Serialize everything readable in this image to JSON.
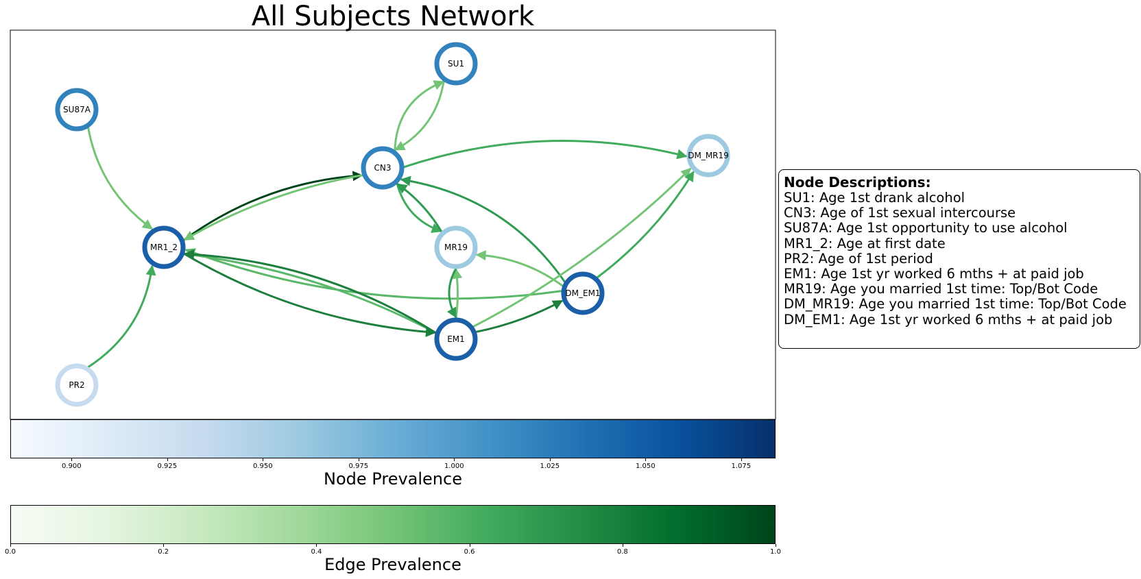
{
  "title": "All Subjects Network",
  "colors": {
    "edge_arrow": "#41ab5d"
  },
  "nodes": [
    {
      "id": "SU1",
      "label": "SU1",
      "prevalence": 1.01,
      "color": "#3182bd"
    },
    {
      "id": "SU87A",
      "label": "SU87A",
      "prevalence": 1.01,
      "color": "#3182bd"
    },
    {
      "id": "CN3",
      "label": "CN3",
      "prevalence": 1.01,
      "color": "#3182bd"
    },
    {
      "id": "DM_MR19",
      "label": "DM_MR19",
      "prevalence": 0.955,
      "color": "#9ecae1"
    },
    {
      "id": "MR1_2",
      "label": "MR1_2",
      "prevalence": 1.04,
      "color": "#1a5fa8"
    },
    {
      "id": "MR19",
      "label": "MR19",
      "prevalence": 0.955,
      "color": "#9ecae1"
    },
    {
      "id": "DM_EM1",
      "label": "DM_EM1",
      "prevalence": 1.04,
      "color": "#1a5fa8"
    },
    {
      "id": "EM1",
      "label": "EM1",
      "prevalence": 1.04,
      "color": "#1a5fa8"
    },
    {
      "id": "PR2",
      "label": "PR2",
      "prevalence": 0.92,
      "color": "#c6dbef"
    }
  ],
  "edges": [
    {
      "from": "CN3",
      "to": "SU1",
      "prevalence": 0.55,
      "color": "#74c476"
    },
    {
      "from": "SU1",
      "to": "CN3",
      "prevalence": 0.55,
      "color": "#74c476"
    },
    {
      "from": "SU87A",
      "to": "MR1_2",
      "prevalence": 0.55,
      "color": "#74c476"
    },
    {
      "from": "MR1_2",
      "to": "CN3",
      "prevalence": 0.95,
      "color": "#00441b"
    },
    {
      "from": "CN3",
      "to": "MR1_2",
      "prevalence": 0.55,
      "color": "#74c476"
    },
    {
      "from": "CN3",
      "to": "DM_MR19",
      "prevalence": 0.65,
      "color": "#41ab5d"
    },
    {
      "from": "CN3",
      "to": "MR19",
      "prevalence": 0.65,
      "color": "#41ab5d"
    },
    {
      "from": "MR19",
      "to": "CN3",
      "prevalence": 0.7,
      "color": "#2f9a52"
    },
    {
      "from": "DM_EM1",
      "to": "CN3",
      "prevalence": 0.7,
      "color": "#2f9a52"
    },
    {
      "from": "DM_EM1",
      "to": "MR1_2",
      "prevalence": 0.6,
      "color": "#5bb86a"
    },
    {
      "from": "EM1",
      "to": "MR1_2",
      "prevalence": 0.6,
      "color": "#5bb86a"
    },
    {
      "from": "MR1_2",
      "to": "EM1",
      "prevalence": 0.8,
      "color": "#1d7f3d"
    },
    {
      "from": "EM1",
      "to": "MR1_2",
      "prevalence": 0.8,
      "color": "#1d7f3d"
    },
    {
      "from": "PR2",
      "to": "MR1_2",
      "prevalence": 0.65,
      "color": "#41ab5d"
    },
    {
      "from": "EM1",
      "to": "MR19",
      "prevalence": 0.55,
      "color": "#74c476"
    },
    {
      "from": "MR19",
      "to": "EM1",
      "prevalence": 0.7,
      "color": "#2f9a52"
    },
    {
      "from": "DM_EM1",
      "to": "MR19",
      "prevalence": 0.55,
      "color": "#74c476"
    },
    {
      "from": "EM1",
      "to": "DM_EM1",
      "prevalence": 0.8,
      "color": "#1d7f3d"
    },
    {
      "from": "EM1",
      "to": "DM_MR19",
      "prevalence": 0.55,
      "color": "#74c476"
    },
    {
      "from": "DM_EM1",
      "to": "DM_MR19",
      "prevalence": 0.65,
      "color": "#41ab5d"
    }
  ],
  "legend": {
    "title": "Node Descriptions:",
    "lines": [
      "SU1: Age 1st drank alcohol",
      "CN3: Age of 1st sexual intercourse",
      "SU87A: Age 1st opportunity to use alcohol",
      "MR1_2: Age at first date",
      "PR2: Age of 1st period",
      "EM1: Age 1st yr worked 6 mths + at paid job",
      "MR19: Age you married 1st time: Top/Bot Code",
      "DM_MR19: Age you married 1st time: Top/Bot Code",
      "DM_EM1: Age 1st yr worked 6 mths + at paid job"
    ]
  },
  "node_colorbar": {
    "label": "Node Prevalence",
    "min": 0.884,
    "max": 1.084,
    "ticks": [
      "0.900",
      "0.925",
      "0.950",
      "0.975",
      "1.000",
      "1.025",
      "1.050",
      "1.075"
    ]
  },
  "edge_colorbar": {
    "label": "Edge Prevalence",
    "min": 0.0,
    "max": 1.0,
    "ticks": [
      "0.0",
      "0.2",
      "0.4",
      "0.6",
      "0.8",
      "1.0"
    ]
  }
}
